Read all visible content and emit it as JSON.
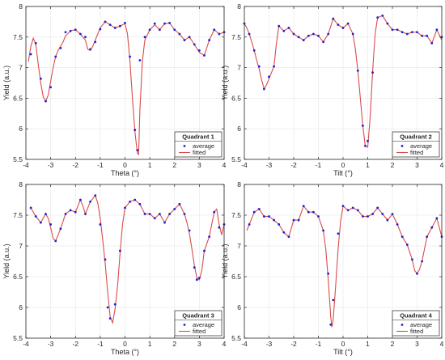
{
  "colors": {
    "average": "#1f1fd0",
    "fitted": "#d84c4c",
    "grid": "#e6e6e6",
    "axis": "#262626"
  },
  "legend": {
    "average_label": "average",
    "fitted_label": "fitted",
    "placement": "bottom-right"
  },
  "chart_data": [
    {
      "type": "line",
      "legend_title": "Quadrant 1",
      "xlabel": "Theta (°)",
      "ylabel": "Yield (a.u.)",
      "xlim": [
        -4,
        4
      ],
      "ylim": [
        5.5,
        8
      ],
      "xticks": [
        "-4",
        "-3",
        "-2",
        "-1",
        "0",
        "1",
        "2",
        "3",
        "4"
      ],
      "yticks": [
        "5.5",
        "6",
        "6.5",
        "7",
        "7.5",
        "8"
      ],
      "grid": true,
      "series": [
        {
          "name": "average",
          "style": "markers",
          "x": [
            -3.8,
            -3.6,
            -3.4,
            -3.2,
            -3.0,
            -2.8,
            -2.6,
            -2.4,
            -2.2,
            -2.0,
            -1.8,
            -1.6,
            -1.4,
            -1.2,
            -1.0,
            -0.8,
            -0.6,
            -0.4,
            -0.2,
            0.0,
            0.2,
            0.4,
            0.5,
            0.6,
            0.8,
            1.0,
            1.2,
            1.4,
            1.6,
            1.8,
            2.0,
            2.2,
            2.4,
            2.6,
            2.8,
            3.0,
            3.2,
            3.4,
            3.6,
            3.8,
            4.0
          ],
          "y": [
            7.22,
            7.4,
            6.82,
            6.45,
            6.68,
            7.18,
            7.32,
            7.58,
            7.6,
            7.62,
            7.55,
            7.5,
            7.3,
            7.42,
            7.63,
            7.75,
            7.7,
            7.65,
            7.68,
            7.73,
            7.18,
            5.98,
            5.65,
            7.12,
            7.5,
            7.62,
            7.72,
            7.62,
            7.72,
            7.73,
            7.62,
            7.55,
            7.45,
            7.5,
            7.38,
            7.28,
            7.2,
            7.45,
            7.62,
            7.55,
            7.58
          ]
        },
        {
          "name": "fitted",
          "style": "line",
          "x": [
            -3.9,
            -3.8,
            -3.7,
            -3.6,
            -3.5,
            -3.4,
            -3.3,
            -3.2,
            -3.1,
            -3.0,
            -2.9,
            -2.8,
            -2.7,
            -2.6,
            -2.5,
            -2.4,
            -2.2,
            -2.0,
            -1.8,
            -1.6,
            -1.5,
            -1.4,
            -1.3,
            -1.2,
            -1.0,
            -0.8,
            -0.6,
            -0.4,
            -0.2,
            0.0,
            0.1,
            0.2,
            0.3,
            0.4,
            0.5,
            0.55,
            0.6,
            0.7,
            0.8,
            1.0,
            1.2,
            1.4,
            1.6,
            1.8,
            2.0,
            2.2,
            2.4,
            2.6,
            2.8,
            3.0,
            3.2,
            3.4,
            3.6,
            3.8,
            4.0
          ],
          "y": [
            7.1,
            7.35,
            7.48,
            7.38,
            7.05,
            6.75,
            6.52,
            6.45,
            6.55,
            6.78,
            7.0,
            7.18,
            7.28,
            7.35,
            7.42,
            7.52,
            7.6,
            7.62,
            7.55,
            7.45,
            7.3,
            7.28,
            7.35,
            7.45,
            7.65,
            7.75,
            7.7,
            7.65,
            7.68,
            7.72,
            7.55,
            7.1,
            6.5,
            5.95,
            5.6,
            5.58,
            6.3,
            7.1,
            7.45,
            7.62,
            7.7,
            7.62,
            7.72,
            7.73,
            7.62,
            7.55,
            7.45,
            7.5,
            7.38,
            7.25,
            7.2,
            7.45,
            7.62,
            7.55,
            7.58
          ]
        }
      ]
    },
    {
      "type": "line",
      "legend_title": "Quadrant 2",
      "xlabel": "Tilt (°)",
      "ylabel": "Yield (a.u.)",
      "xlim": [
        -4,
        4
      ],
      "ylim": [
        5.5,
        8
      ],
      "xticks": [
        "-4",
        "-3",
        "-2",
        "-1",
        "0",
        "1",
        "2",
        "3",
        "4"
      ],
      "yticks": [
        "5.5",
        "6",
        "6.5",
        "7",
        "7.5",
        "8"
      ],
      "grid": true,
      "series": [
        {
          "name": "average",
          "style": "markers",
          "x": [
            -4.0,
            -3.8,
            -3.6,
            -3.4,
            -3.2,
            -3.0,
            -2.8,
            -2.6,
            -2.4,
            -2.2,
            -2.0,
            -1.8,
            -1.6,
            -1.4,
            -1.2,
            -1.0,
            -0.8,
            -0.6,
            -0.4,
            -0.2,
            0.0,
            0.2,
            0.4,
            0.6,
            0.8,
            0.9,
            1.0,
            1.2,
            1.4,
            1.6,
            1.8,
            2.0,
            2.2,
            2.4,
            2.6,
            2.8,
            3.0,
            3.2,
            3.4,
            3.6,
            3.8,
            4.0
          ],
          "y": [
            7.72,
            7.55,
            7.28,
            7.02,
            6.65,
            6.85,
            7.02,
            7.68,
            7.6,
            7.65,
            7.55,
            7.5,
            7.45,
            7.52,
            7.55,
            7.52,
            7.42,
            7.55,
            7.8,
            7.7,
            7.65,
            7.72,
            7.55,
            6.95,
            6.05,
            5.72,
            5.8,
            6.92,
            7.82,
            7.85,
            7.72,
            7.62,
            7.62,
            7.58,
            7.55,
            7.58,
            7.58,
            7.52,
            7.52,
            7.4,
            7.62,
            7.5
          ]
        },
        {
          "name": "fitted",
          "style": "line",
          "x": [
            -4.0,
            -3.9,
            -3.8,
            -3.7,
            -3.6,
            -3.5,
            -3.4,
            -3.3,
            -3.2,
            -3.1,
            -3.0,
            -2.9,
            -2.8,
            -2.7,
            -2.6,
            -2.4,
            -2.2,
            -2.0,
            -1.8,
            -1.6,
            -1.4,
            -1.2,
            -1.0,
            -0.8,
            -0.6,
            -0.4,
            -0.2,
            0.0,
            0.2,
            0.4,
            0.5,
            0.6,
            0.7,
            0.8,
            0.9,
            1.0,
            1.1,
            1.2,
            1.3,
            1.4,
            1.6,
            1.8,
            2.0,
            2.2,
            2.4,
            2.6,
            2.8,
            3.0,
            3.2,
            3.4,
            3.6,
            3.8,
            4.0
          ],
          "y": [
            7.72,
            7.65,
            7.55,
            7.42,
            7.28,
            7.12,
            6.98,
            6.8,
            6.65,
            6.72,
            6.82,
            6.92,
            7.02,
            7.4,
            7.68,
            7.6,
            7.65,
            7.55,
            7.5,
            7.45,
            7.52,
            7.55,
            7.52,
            7.42,
            7.55,
            7.8,
            7.7,
            7.65,
            7.72,
            7.55,
            7.3,
            6.95,
            6.5,
            6.05,
            5.72,
            5.7,
            6.2,
            6.95,
            7.55,
            7.82,
            7.85,
            7.72,
            7.62,
            7.62,
            7.58,
            7.55,
            7.58,
            7.58,
            7.52,
            7.52,
            7.4,
            7.62,
            7.45
          ]
        }
      ]
    },
    {
      "type": "line",
      "legend_title": "Quadrant 3",
      "xlabel": "Theta (°)",
      "ylabel": "Yield (a.u.)",
      "xlim": [
        -4,
        4
      ],
      "ylim": [
        5.5,
        8
      ],
      "xticks": [
        "-4",
        "-3",
        "-2",
        "-1",
        "0",
        "1",
        "2",
        "3",
        "4"
      ],
      "yticks": [
        "5.5",
        "6",
        "6.5",
        "7",
        "7.5",
        "8"
      ],
      "grid": true,
      "series": [
        {
          "name": "average",
          "style": "markers",
          "x": [
            -3.8,
            -3.6,
            -3.4,
            -3.2,
            -3.0,
            -2.8,
            -2.6,
            -2.4,
            -2.2,
            -2.0,
            -1.8,
            -1.6,
            -1.4,
            -1.2,
            -1.0,
            -0.8,
            -0.7,
            -0.6,
            -0.4,
            -0.2,
            0.0,
            0.2,
            0.4,
            0.6,
            0.8,
            1.0,
            1.2,
            1.4,
            1.6,
            1.8,
            2.0,
            2.2,
            2.4,
            2.6,
            2.8,
            2.9,
            3.0,
            3.2,
            3.4,
            3.6,
            3.8,
            4.0
          ],
          "y": [
            7.62,
            7.48,
            7.38,
            7.52,
            7.35,
            7.08,
            7.28,
            7.52,
            7.58,
            7.55,
            7.75,
            7.52,
            7.72,
            7.82,
            7.35,
            6.78,
            6.0,
            5.82,
            6.05,
            6.92,
            7.62,
            7.72,
            7.75,
            7.68,
            7.52,
            7.52,
            7.45,
            7.52,
            7.38,
            7.52,
            7.6,
            7.68,
            7.52,
            7.25,
            6.65,
            6.45,
            6.48,
            6.92,
            7.15,
            7.55,
            7.3,
            7.35
          ]
        },
        {
          "name": "fitted",
          "style": "line",
          "x": [
            -3.8,
            -3.6,
            -3.4,
            -3.2,
            -3.1,
            -3.0,
            -2.9,
            -2.8,
            -2.6,
            -2.4,
            -2.2,
            -2.0,
            -1.8,
            -1.7,
            -1.6,
            -1.4,
            -1.2,
            -1.1,
            -1.0,
            -0.9,
            -0.8,
            -0.7,
            -0.6,
            -0.5,
            -0.4,
            -0.3,
            -0.2,
            -0.1,
            0.0,
            0.2,
            0.4,
            0.6,
            0.8,
            1.0,
            1.2,
            1.4,
            1.6,
            1.8,
            2.0,
            2.2,
            2.4,
            2.5,
            2.6,
            2.7,
            2.8,
            2.9,
            3.0,
            3.1,
            3.2,
            3.4,
            3.6,
            3.7,
            3.8,
            3.9,
            4.0
          ],
          "y": [
            7.62,
            7.48,
            7.38,
            7.52,
            7.45,
            7.3,
            7.12,
            7.08,
            7.28,
            7.52,
            7.58,
            7.55,
            7.75,
            7.65,
            7.52,
            7.72,
            7.82,
            7.7,
            7.45,
            7.1,
            6.72,
            6.25,
            5.85,
            5.75,
            5.98,
            6.35,
            6.88,
            7.35,
            7.62,
            7.72,
            7.75,
            7.68,
            7.52,
            7.52,
            7.45,
            7.52,
            7.38,
            7.52,
            7.6,
            7.68,
            7.52,
            7.38,
            7.2,
            6.95,
            6.68,
            6.48,
            6.45,
            6.6,
            6.92,
            7.15,
            7.55,
            7.6,
            7.35,
            7.18,
            7.35
          ]
        }
      ]
    },
    {
      "type": "line",
      "legend_title": "Quadrant 4",
      "xlabel": "Tilt (°)",
      "ylabel": "Yield (a.u.)",
      "xlim": [
        -4,
        4
      ],
      "ylim": [
        5.5,
        8
      ],
      "xticks": [
        "-4",
        "-3",
        "-2",
        "-1",
        "0",
        "1",
        "2",
        "3",
        "4"
      ],
      "yticks": [
        "5.5",
        "6",
        "6.5",
        "7",
        "7.5",
        "8"
      ],
      "grid": true,
      "series": [
        {
          "name": "average",
          "style": "markers",
          "x": [
            -3.8,
            -3.6,
            -3.4,
            -3.2,
            -3.0,
            -2.8,
            -2.6,
            -2.4,
            -2.2,
            -2.0,
            -1.8,
            -1.6,
            -1.4,
            -1.2,
            -1.0,
            -0.8,
            -0.6,
            -0.5,
            -0.4,
            -0.2,
            0.0,
            0.2,
            0.4,
            0.6,
            0.8,
            1.0,
            1.2,
            1.4,
            1.6,
            1.8,
            2.0,
            2.2,
            2.4,
            2.6,
            2.8,
            3.0,
            3.2,
            3.4,
            3.6,
            3.8,
            4.0
          ],
          "y": [
            7.35,
            7.55,
            7.6,
            7.48,
            7.48,
            7.42,
            7.35,
            7.22,
            7.15,
            7.42,
            7.42,
            7.65,
            7.55,
            7.55,
            7.48,
            7.25,
            6.55,
            5.72,
            6.12,
            7.2,
            7.65,
            7.58,
            7.62,
            7.58,
            7.48,
            7.48,
            7.52,
            7.62,
            7.52,
            7.42,
            7.52,
            7.35,
            7.15,
            7.02,
            6.78,
            6.55,
            6.75,
            7.15,
            7.3,
            7.45,
            7.15
          ]
        },
        {
          "name": "fitted",
          "style": "line",
          "x": [
            -3.9,
            -3.8,
            -3.6,
            -3.4,
            -3.2,
            -3.0,
            -2.8,
            -2.6,
            -2.4,
            -2.2,
            -2.0,
            -1.8,
            -1.6,
            -1.4,
            -1.2,
            -1.0,
            -0.8,
            -0.7,
            -0.6,
            -0.5,
            -0.45,
            -0.4,
            -0.3,
            -0.2,
            -0.1,
            0.0,
            0.2,
            0.4,
            0.6,
            0.8,
            1.0,
            1.2,
            1.4,
            1.6,
            1.8,
            2.0,
            2.2,
            2.4,
            2.6,
            2.8,
            2.9,
            3.0,
            3.1,
            3.2,
            3.4,
            3.6,
            3.8,
            4.0
          ],
          "y": [
            7.25,
            7.35,
            7.55,
            7.6,
            7.48,
            7.48,
            7.42,
            7.35,
            7.22,
            7.15,
            7.42,
            7.42,
            7.65,
            7.55,
            7.55,
            7.48,
            7.25,
            6.95,
            6.45,
            5.85,
            5.68,
            5.8,
            6.35,
            6.95,
            7.4,
            7.65,
            7.58,
            7.62,
            7.58,
            7.48,
            7.48,
            7.52,
            7.62,
            7.52,
            7.42,
            7.52,
            7.35,
            7.15,
            7.02,
            6.78,
            6.6,
            6.55,
            6.62,
            6.75,
            7.15,
            7.3,
            7.45,
            7.15
          ]
        }
      ]
    }
  ]
}
